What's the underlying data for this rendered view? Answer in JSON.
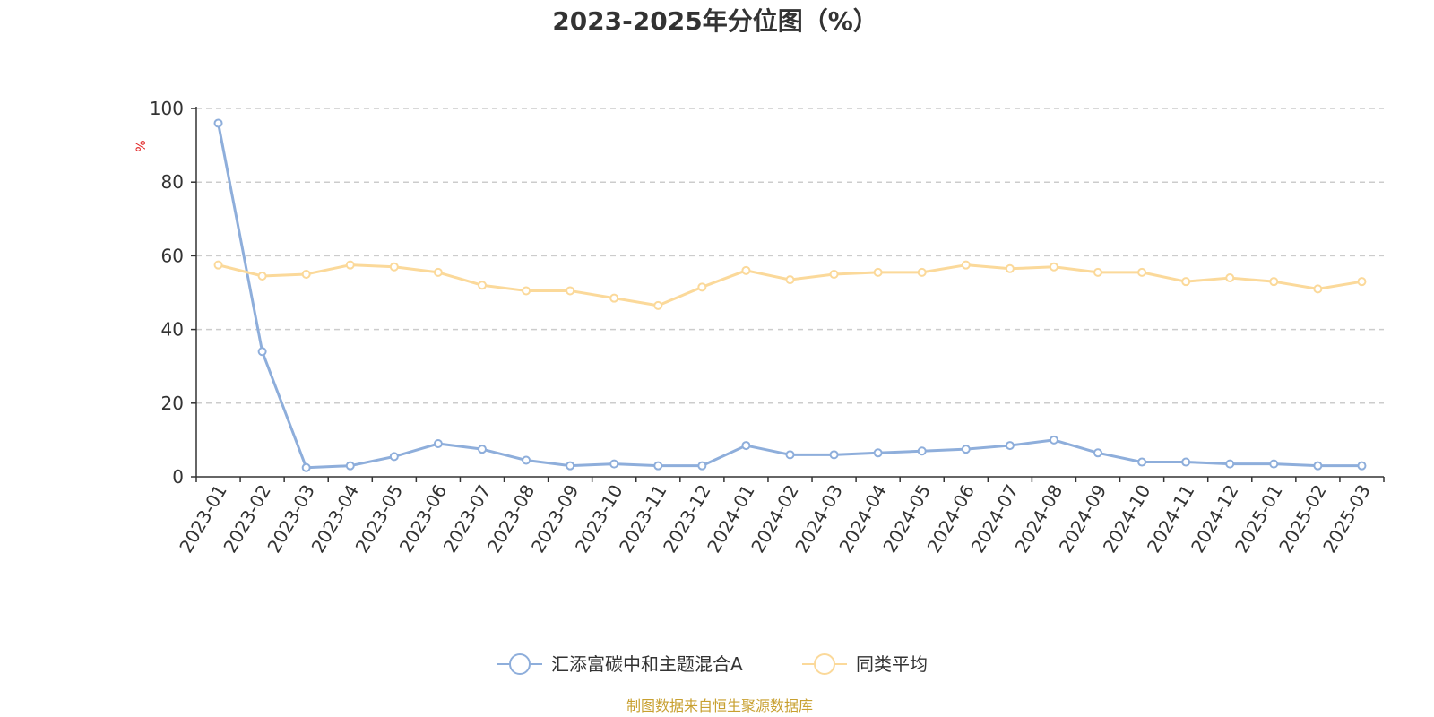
{
  "colors": {
    "series_a": "#8eaedb",
    "series_b": "#fbd99a",
    "unit_label": "#e02020",
    "source": "#c8a030",
    "grid": "#cccccc",
    "axis": "#333333"
  },
  "source_text": "制图数据来自恒生聚源数据库",
  "chart_data": {
    "type": "line",
    "title": "2023-2025年分位图（%）",
    "ylabel": "%",
    "xlabel": "",
    "ylim": [
      0,
      100
    ],
    "yticks": [
      "0",
      "20",
      "40",
      "60",
      "80",
      "100"
    ],
    "grid": "horizontal dashed",
    "legend_position": "bottom-center",
    "categories": [
      "2023-01",
      "2023-02",
      "2023-03",
      "2023-04",
      "2023-05",
      "2023-06",
      "2023-07",
      "2023-08",
      "2023-09",
      "2023-10",
      "2023-11",
      "2023-12",
      "2024-01",
      "2024-02",
      "2024-03",
      "2024-04",
      "2024-05",
      "2024-06",
      "2024-07",
      "2024-08",
      "2024-09",
      "2024-10",
      "2024-11",
      "2024-12",
      "2025-01",
      "2025-02",
      "2025-03"
    ],
    "series": [
      {
        "name": "汇添富碳中和主题混合A",
        "color_key": "series_a",
        "values": [
          96,
          34,
          2.5,
          3,
          5.5,
          9,
          7.5,
          4.5,
          3,
          3.5,
          3,
          3,
          8.5,
          6,
          6,
          6.5,
          7,
          7.5,
          8.5,
          10,
          6.5,
          4,
          4,
          3.5,
          3.5,
          3,
          3
        ]
      },
      {
        "name": "同类平均",
        "color_key": "series_b",
        "values": [
          57.5,
          54.5,
          55,
          57.5,
          57,
          55.5,
          52,
          50.5,
          50.5,
          48.5,
          46.5,
          51.5,
          56,
          53.5,
          55,
          55.5,
          55.5,
          57.5,
          56.5,
          57,
          55.5,
          55.5,
          53,
          54,
          53,
          51,
          53
        ]
      }
    ]
  }
}
